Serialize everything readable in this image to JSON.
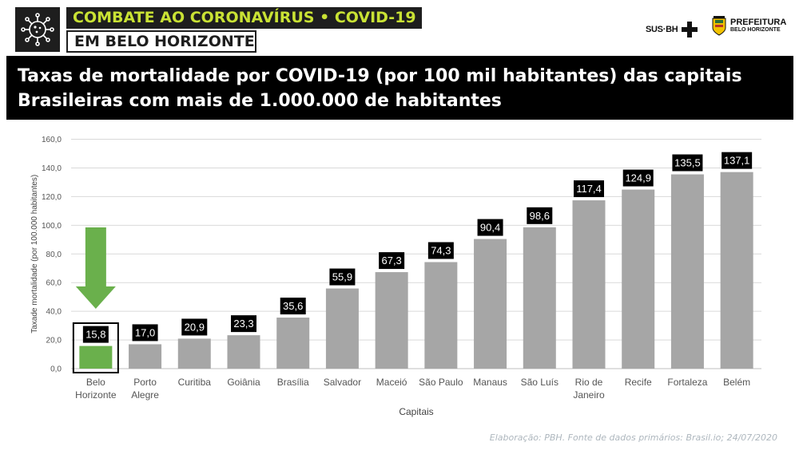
{
  "header": {
    "banner_title": "COMBATE AO CORONAVÍRUS • COVID-19",
    "banner_subtitle": "EM BELO HORIZONTE",
    "logo_icon": "virus-icon",
    "sus_logo_text": "SUS·BH",
    "prefeitura_line1": "PREFEITURA",
    "prefeitura_line2": "BELO HORIZONTE",
    "accent_color": "#c9e234"
  },
  "title": {
    "line1": "Taxas de mortalidade por COVID-19 (por 100 mil habitantes) das capitais",
    "line2": "Brasileiras com mais de 1.000.000 de habitantes"
  },
  "chart_data": {
    "type": "bar",
    "categories": [
      [
        "Belo",
        "Horizonte"
      ],
      [
        "Porto",
        "Alegre"
      ],
      [
        "Curitiba"
      ],
      [
        "Goiânia"
      ],
      [
        "Brasília"
      ],
      [
        "Salvador"
      ],
      [
        "Maceió"
      ],
      [
        "São Paulo"
      ],
      [
        "Manaus"
      ],
      [
        "São Luís"
      ],
      [
        "Rio de",
        "Janeiro"
      ],
      [
        "Recife"
      ],
      [
        "Fortaleza"
      ],
      [
        "Belém"
      ]
    ],
    "values": [
      15.8,
      17.0,
      20.9,
      23.3,
      35.6,
      55.9,
      67.3,
      74.3,
      90.4,
      98.6,
      117.4,
      124.9,
      135.5,
      137.1
    ],
    "data_labels": [
      "15,8",
      "17,0",
      "20,9",
      "23,3",
      "35,6",
      "55,9",
      "67,3",
      "74,3",
      "90,4",
      "98,6",
      "117,4",
      "124,9",
      "135,5",
      "137,1"
    ],
    "y_ticks": [
      "0,0",
      "20,0",
      "40,0",
      "60,0",
      "80,0",
      "100,0",
      "120,0",
      "140,0",
      "160,0"
    ],
    "ylim": [
      0,
      160
    ],
    "xlabel": "Capitais",
    "ylabel": "Taxade mortalidade (por 100.000 habitantes)",
    "grid": true,
    "highlight_index": 0,
    "colors": {
      "bar": "#a6a6a6",
      "highlight_bar": "#6ab04c",
      "highlight_arrow": "#6ab04c",
      "data_label_bg": "#000000",
      "grid": "#d9d9d9"
    }
  },
  "source": "Elaboração: PBH. Fonte de dados primários: Brasil.io; 24/07/2020"
}
